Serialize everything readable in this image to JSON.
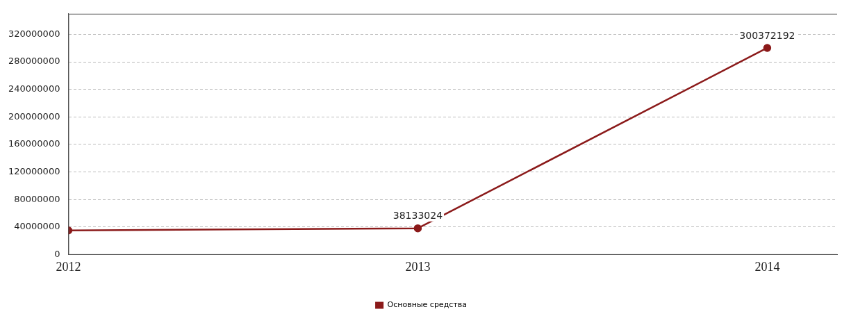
{
  "chart_data": {
    "type": "line",
    "x": [
      2012,
      2013,
      2014
    ],
    "xlim": [
      2012,
      2014.2
    ],
    "xticks": [
      2012,
      2013,
      2014
    ],
    "series": [
      {
        "name": "Основные средства",
        "color": "#8b1a1a",
        "values": [
          35000000,
          38133024,
          300372192
        ],
        "value_labels": [
          null,
          "38133024",
          "300372192"
        ]
      }
    ],
    "ylim": [
      0,
      350000000
    ],
    "yticks": [
      0,
      40000000,
      80000000,
      120000000,
      160000000,
      200000000,
      240000000,
      280000000,
      320000000
    ],
    "grid": "y",
    "legend": "bottom",
    "marker": "circle",
    "line_style": "solid"
  }
}
